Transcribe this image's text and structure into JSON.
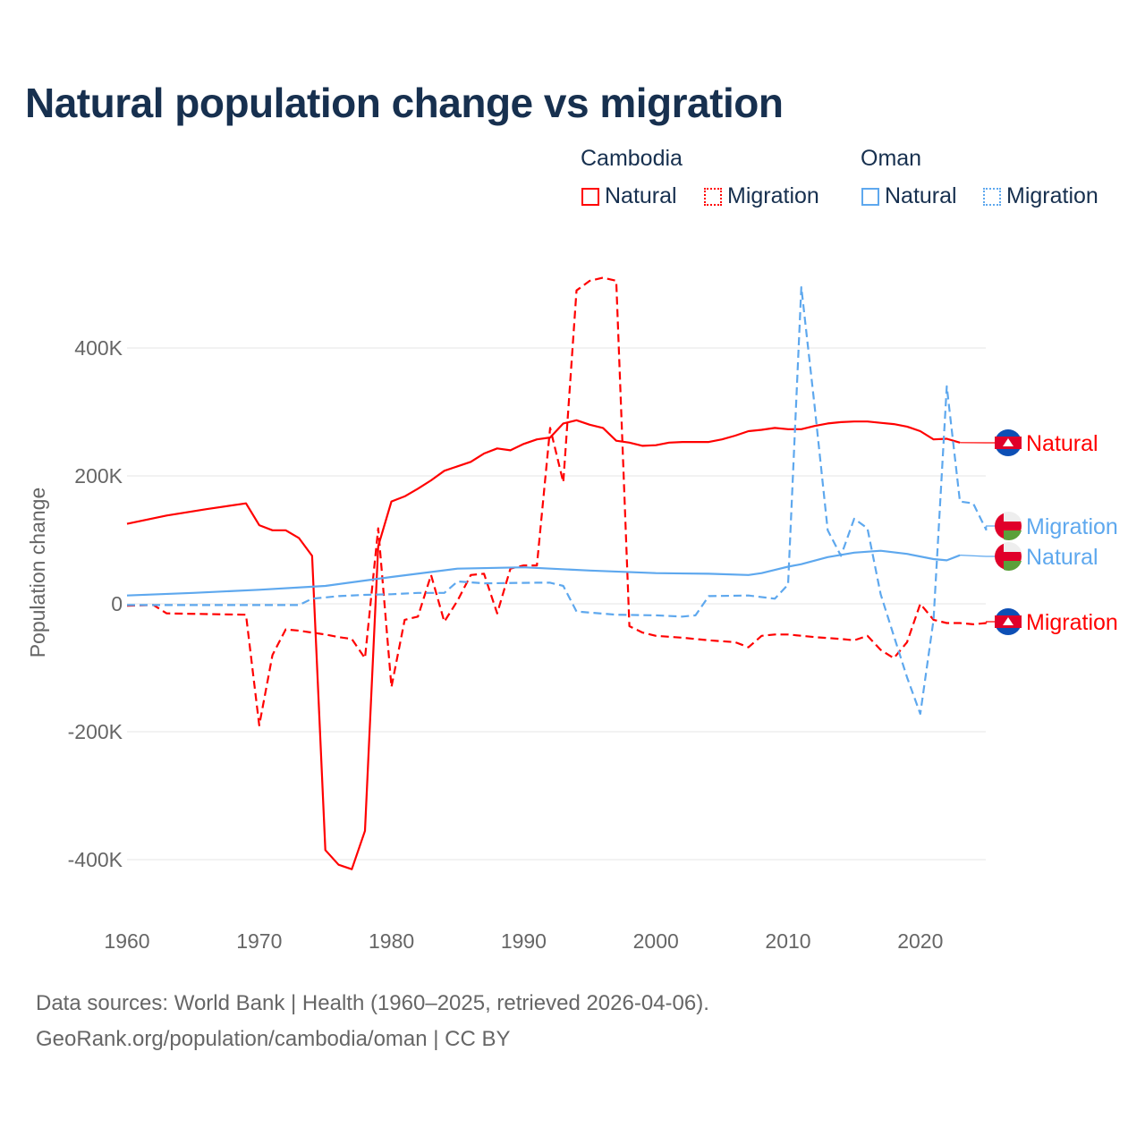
{
  "chart_data": {
    "type": "line",
    "title": "Natural population change vs migration",
    "xlabel": "",
    "ylabel": "Population change",
    "xlim": [
      1960,
      2025
    ],
    "ylim": [
      -450000,
      520000
    ],
    "yticks": [
      400000,
      200000,
      0,
      -200000,
      -400000
    ],
    "ytick_labels": [
      "400K",
      "200K",
      "0",
      "-200K",
      "-400K"
    ],
    "xticks": [
      1960,
      1970,
      1980,
      1990,
      2000,
      2010,
      2020
    ],
    "xtick_labels": [
      "1960",
      "1970",
      "1980",
      "1990",
      "2000",
      "2010",
      "2020"
    ],
    "grid": true,
    "legend": {
      "placement": "top-right",
      "groups": [
        {
          "label": "Cambodia",
          "items": [
            "Natural",
            "Migration"
          ]
        },
        {
          "label": "Oman",
          "items": [
            "Natural",
            "Migration"
          ]
        }
      ]
    },
    "series": [
      {
        "name": "Natural",
        "country": "Cambodia",
        "color": "#ff0000",
        "dash": false,
        "end_label": "Natural",
        "points": [
          [
            1960,
            125
          ],
          [
            1963,
            138
          ],
          [
            1966,
            148
          ],
          [
            1969,
            157
          ],
          [
            1970,
            123
          ],
          [
            1971,
            115
          ],
          [
            1972,
            115
          ],
          [
            1973,
            103
          ],
          [
            1974,
            75
          ],
          [
            1975,
            -385
          ],
          [
            1976,
            -408
          ],
          [
            1977,
            -415
          ],
          [
            1978,
            -355
          ],
          [
            1979,
            90
          ],
          [
            1980,
            160
          ],
          [
            1981,
            168
          ],
          [
            1982,
            180
          ],
          [
            1983,
            193
          ],
          [
            1984,
            208
          ],
          [
            1985,
            215
          ],
          [
            1986,
            222
          ],
          [
            1987,
            235
          ],
          [
            1988,
            243
          ],
          [
            1989,
            240
          ],
          [
            1990,
            250
          ],
          [
            1991,
            257
          ],
          [
            1992,
            260
          ],
          [
            1993,
            282
          ],
          [
            1994,
            287
          ],
          [
            1995,
            280
          ],
          [
            1996,
            275
          ],
          [
            1997,
            255
          ],
          [
            1998,
            252
          ],
          [
            1999,
            247
          ],
          [
            2000,
            248
          ],
          [
            2001,
            252
          ],
          [
            2002,
            253
          ],
          [
            2003,
            253
          ],
          [
            2004,
            253
          ],
          [
            2005,
            257
          ],
          [
            2006,
            263
          ],
          [
            2007,
            270
          ],
          [
            2008,
            272
          ],
          [
            2009,
            275
          ],
          [
            2010,
            273
          ],
          [
            2011,
            273
          ],
          [
            2012,
            278
          ],
          [
            2013,
            282
          ],
          [
            2014,
            284
          ],
          [
            2015,
            285
          ],
          [
            2016,
            285
          ],
          [
            2017,
            283
          ],
          [
            2018,
            281
          ],
          [
            2019,
            277
          ],
          [
            2020,
            270
          ],
          [
            2021,
            257
          ],
          [
            2022,
            258
          ],
          [
            2023,
            252
          ]
        ]
      },
      {
        "name": "Migration",
        "country": "Cambodia",
        "color": "#ff0000",
        "dash": true,
        "end_label": "Migration",
        "points": [
          [
            1960,
            -3
          ],
          [
            1962,
            -2
          ],
          [
            1963,
            -15
          ],
          [
            1969,
            -17
          ],
          [
            1970,
            -190
          ],
          [
            1971,
            -80
          ],
          [
            1972,
            -40
          ],
          [
            1973,
            -42
          ],
          [
            1974,
            -45
          ],
          [
            1975,
            -48
          ],
          [
            1976,
            -52
          ],
          [
            1977,
            -55
          ],
          [
            1978,
            -85
          ],
          [
            1979,
            118
          ],
          [
            1980,
            -130
          ],
          [
            1981,
            -25
          ],
          [
            1982,
            -20
          ],
          [
            1983,
            45
          ],
          [
            1984,
            -28
          ],
          [
            1985,
            5
          ],
          [
            1986,
            45
          ],
          [
            1987,
            47
          ],
          [
            1988,
            -15
          ],
          [
            1989,
            55
          ],
          [
            1990,
            60
          ],
          [
            1991,
            60
          ],
          [
            1992,
            275
          ],
          [
            1993,
            190
          ],
          [
            1994,
            490
          ],
          [
            1995,
            505
          ],
          [
            1996,
            510
          ],
          [
            1997,
            505
          ],
          [
            1998,
            -35
          ],
          [
            1999,
            -45
          ],
          [
            2000,
            -50
          ],
          [
            2002,
            -53
          ],
          [
            2004,
            -57
          ],
          [
            2006,
            -60
          ],
          [
            2007,
            -68
          ],
          [
            2008,
            -50
          ],
          [
            2009,
            -48
          ],
          [
            2010,
            -48
          ],
          [
            2012,
            -52
          ],
          [
            2014,
            -55
          ],
          [
            2015,
            -57
          ],
          [
            2016,
            -50
          ],
          [
            2017,
            -72
          ],
          [
            2018,
            -85
          ],
          [
            2019,
            -60
          ],
          [
            2020,
            0
          ],
          [
            2021,
            -25
          ],
          [
            2022,
            -30
          ],
          [
            2023,
            -30
          ],
          [
            2024,
            -32
          ],
          [
            2025,
            -30
          ]
        ]
      },
      {
        "name": "Natural",
        "country": "Oman",
        "color": "#5ea8ee",
        "dash": false,
        "end_label": "Natural",
        "points": [
          [
            1960,
            13
          ],
          [
            1965,
            17
          ],
          [
            1970,
            22
          ],
          [
            1975,
            28
          ],
          [
            1980,
            42
          ],
          [
            1985,
            55
          ],
          [
            1990,
            57
          ],
          [
            1995,
            52
          ],
          [
            2000,
            48
          ],
          [
            2004,
            47
          ],
          [
            2007,
            45
          ],
          [
            2008,
            48
          ],
          [
            2010,
            58
          ],
          [
            2011,
            62
          ],
          [
            2013,
            73
          ],
          [
            2015,
            80
          ],
          [
            2017,
            83
          ],
          [
            2019,
            78
          ],
          [
            2021,
            70
          ],
          [
            2022,
            68
          ],
          [
            2023,
            76
          ]
        ]
      },
      {
        "name": "Migration",
        "country": "Oman",
        "color": "#5ea8ee",
        "dash": true,
        "end_label": "Migration",
        "points": [
          [
            1960,
            -2
          ],
          [
            1973,
            -2
          ],
          [
            1974,
            8
          ],
          [
            1976,
            12
          ],
          [
            1978,
            14
          ],
          [
            1980,
            15
          ],
          [
            1982,
            17
          ],
          [
            1984,
            17
          ],
          [
            1985,
            35
          ],
          [
            1987,
            32
          ],
          [
            1991,
            33
          ],
          [
            1992,
            33
          ],
          [
            1993,
            28
          ],
          [
            1994,
            -12
          ],
          [
            1997,
            -17
          ],
          [
            2000,
            -18
          ],
          [
            2002,
            -20
          ],
          [
            2003,
            -18
          ],
          [
            2004,
            12
          ],
          [
            2007,
            13
          ],
          [
            2009,
            8
          ],
          [
            2010,
            30
          ],
          [
            2011,
            495
          ],
          [
            2012,
            310
          ],
          [
            2013,
            115
          ],
          [
            2014,
            75
          ],
          [
            2015,
            133
          ],
          [
            2016,
            118
          ],
          [
            2017,
            15
          ],
          [
            2018,
            -50
          ],
          [
            2019,
            -115
          ],
          [
            2020,
            -172
          ],
          [
            2021,
            -25
          ],
          [
            2022,
            340
          ],
          [
            2023,
            160
          ],
          [
            2024,
            157
          ],
          [
            2025,
            115
          ]
        ]
      }
    ],
    "value_units": "thousands"
  },
  "footer": {
    "line1": "Data sources: World Bank | Health (1960–2025, retrieved 2026-04-06).",
    "line2": "GeoRank.org/population/cambodia/oman | CC BY"
  }
}
